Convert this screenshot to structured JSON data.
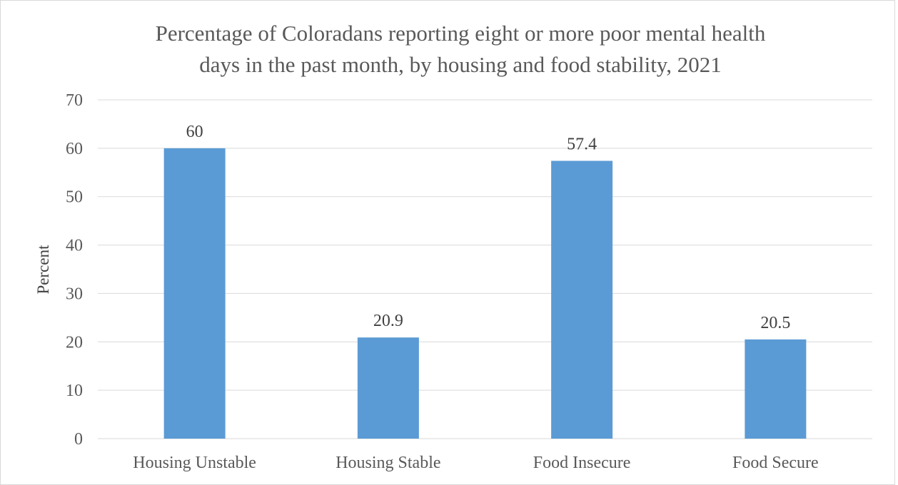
{
  "chart_data": {
    "type": "bar",
    "title_lines": [
      "Percentage of Coloradans reporting eight or more poor mental health",
      "days in the past month, by housing and food stability, 2021"
    ],
    "categories": [
      "Housing Unstable",
      "Housing Stable",
      "Food Insecure",
      "Food Secure"
    ],
    "values": [
      60,
      20.9,
      57.4,
      20.5
    ],
    "data_labels": [
      "60",
      "20.9",
      "57.4",
      "20.5"
    ],
    "xlabel": "",
    "ylabel": "Percent",
    "ylim": [
      0,
      70
    ],
    "y_ticks": [
      "0",
      "10",
      "20",
      "30",
      "40",
      "50",
      "60",
      "70"
    ],
    "grid": true,
    "legend": "none",
    "bar_color": "#5b9bd5",
    "gridline_color": "#d9d9d9"
  }
}
